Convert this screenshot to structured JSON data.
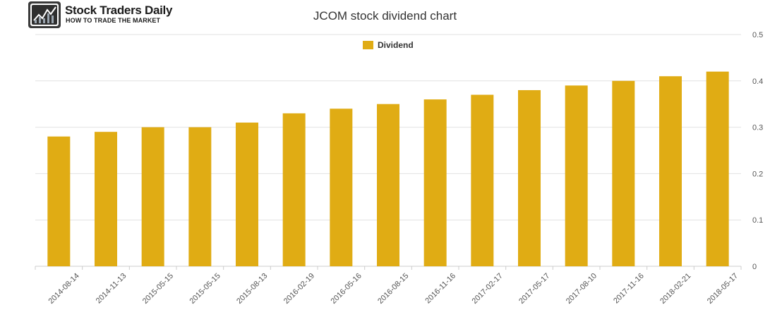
{
  "brand": {
    "name": "Stock Traders Daily",
    "tagline": "HOW TO TRADE THE MARKET",
    "logo_icon": "stock-chart-icon"
  },
  "chart_data": {
    "type": "bar",
    "title": "JCOM stock dividend chart",
    "categories": [
      "2014-08-14",
      "2014-11-13",
      "2015-05-15",
      "2015-05-15",
      "2015-08-13",
      "2016-02-19",
      "2016-05-16",
      "2016-08-15",
      "2016-11-16",
      "2017-02-17",
      "2017-05-17",
      "2017-08-10",
      "2017-11-16",
      "2018-02-21",
      "2018-05-17"
    ],
    "series": [
      {
        "name": "Dividend",
        "color": "#e0ac14",
        "values": [
          0.28,
          0.29,
          0.3,
          0.3,
          0.31,
          0.33,
          0.34,
          0.35,
          0.36,
          0.37,
          0.38,
          0.39,
          0.4,
          0.41,
          0.42
        ]
      }
    ],
    "y_ticks": [
      "0",
      "0.1",
      "0.2",
      "0.3",
      "0.4",
      "0.5"
    ],
    "ylim": [
      0,
      0.5
    ],
    "grid": true,
    "legend_position": "top-center",
    "y_axis_side": "right"
  }
}
